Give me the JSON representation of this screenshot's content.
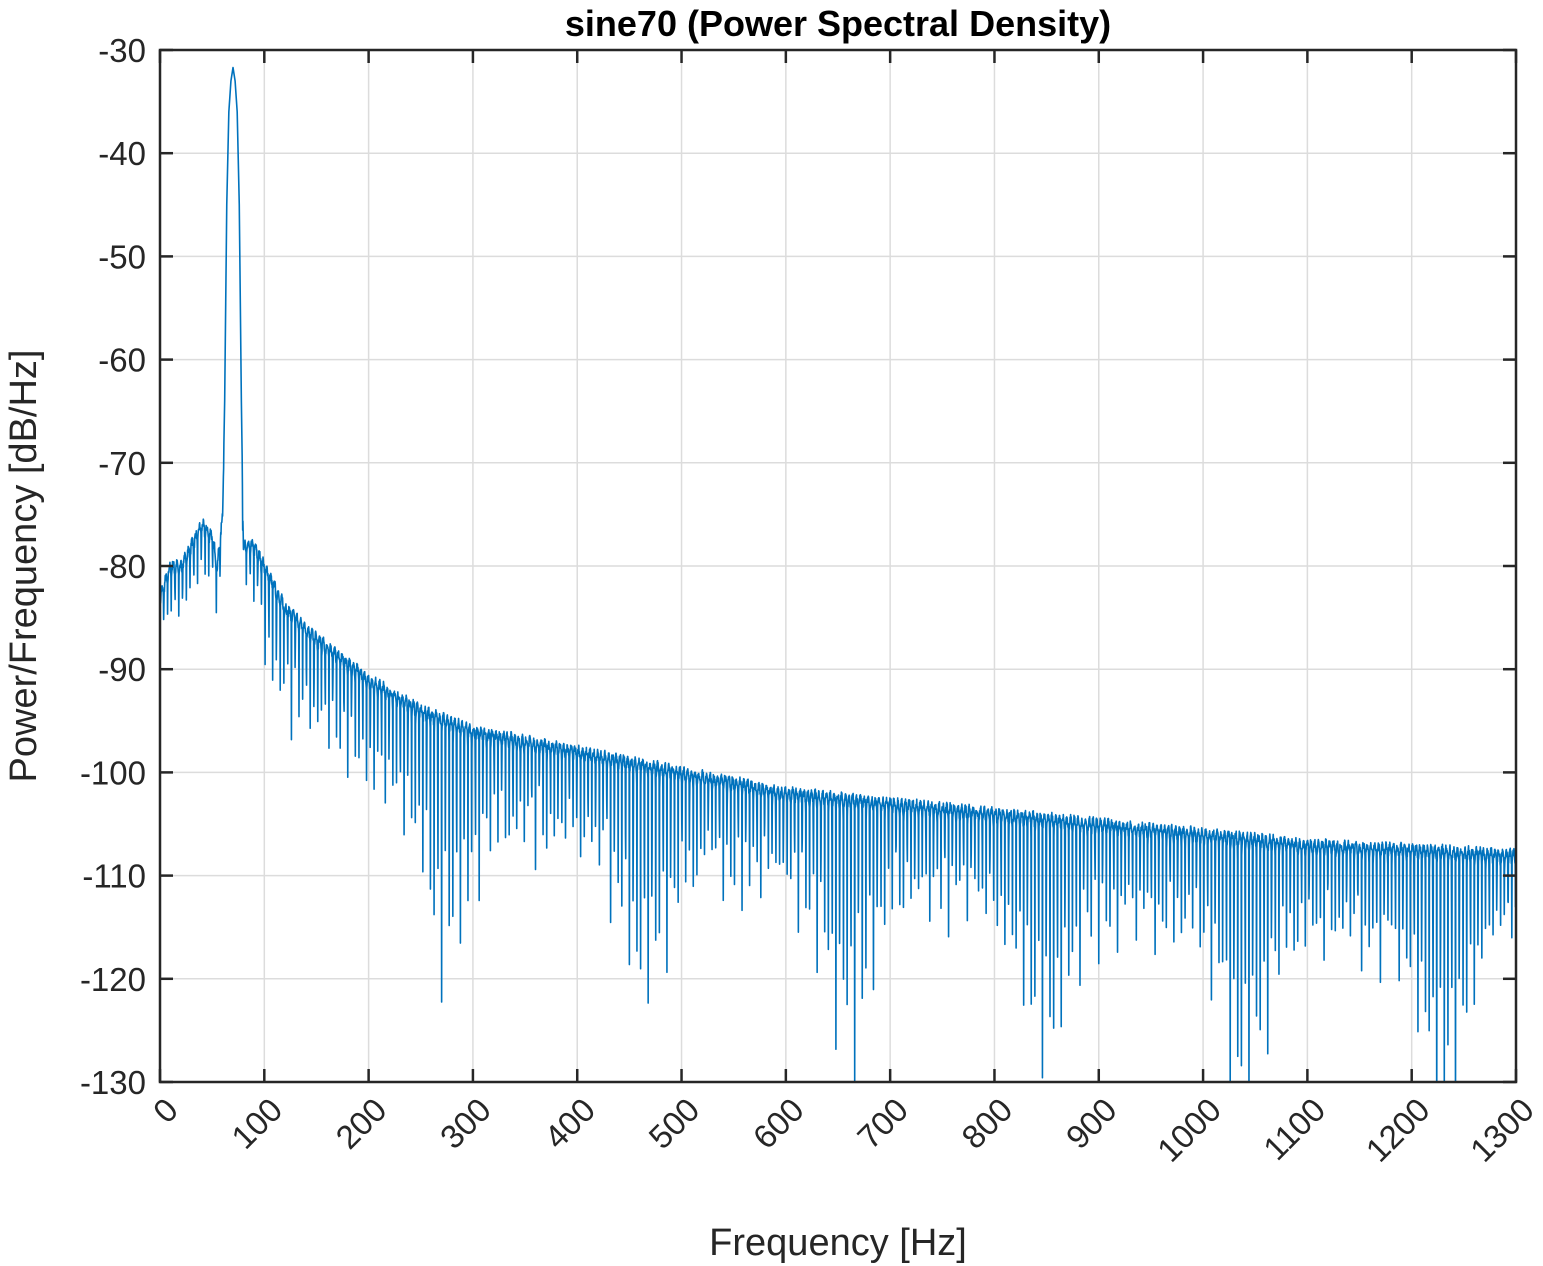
{
  "chart_data": {
    "type": "line",
    "title": "sine70 (Power Spectral Density)",
    "xlabel": "Frequency [Hz]",
    "ylabel": "Power/Frequency [dB/Hz]",
    "xlim": [
      0,
      1300
    ],
    "ylim": [
      -130,
      -30
    ],
    "xticks": [
      0,
      100,
      200,
      300,
      400,
      500,
      600,
      700,
      800,
      900,
      1000,
      1100,
      1200,
      1300
    ],
    "yticks": [
      -30,
      -40,
      -50,
      -60,
      -70,
      -80,
      -90,
      -100,
      -110,
      -120,
      -130
    ],
    "xtick_labels": [
      "0",
      "100",
      "200",
      "300",
      "400",
      "500",
      "600",
      "700",
      "800",
      "900",
      "1000",
      "1100",
      "1200",
      "1300"
    ],
    "ytick_labels": [
      "-30",
      "-40",
      "-50",
      "-60",
      "-70",
      "-80",
      "-90",
      "-100",
      "-110",
      "-120",
      "-130"
    ],
    "grid": true,
    "line_color": "#0072BD",
    "series": [
      {
        "peak_frequency_hz": 70,
        "peak_db": -31.7,
        "x": [
          0,
          10,
          20,
          30,
          40,
          50,
          55,
          60,
          62,
          64,
          66,
          68,
          70,
          72,
          74,
          76,
          78,
          80,
          90,
          100,
          110,
          120,
          150,
          200,
          250,
          300,
          400,
          500,
          600,
          700,
          800,
          900,
          1000,
          1100,
          1200,
          1300
        ],
        "y": [
          -83,
          -80,
          -80,
          -78,
          -76,
          -77,
          -80,
          -75,
          -64,
          -45,
          -36,
          -33,
          -31.7,
          -33,
          -36,
          -45,
          -64,
          -78,
          -78,
          -80,
          -82,
          -84,
          -87,
          -91,
          -94,
          -96,
          -98,
          -100,
          -102,
          -103,
          -104,
          -105,
          -106,
          -107,
          -107.5,
          -108
        ],
        "notch_minima": [
          {
            "x": 275,
            "y": -110.5
          },
          {
            "x": 465,
            "y": -114.5
          },
          {
            "x": 660,
            "y": -117.5
          },
          {
            "x": 850,
            "y": -120.5
          },
          {
            "x": 1040,
            "y": -122
          },
          {
            "x": 1230,
            "y": -123.5
          }
        ]
      }
    ]
  }
}
